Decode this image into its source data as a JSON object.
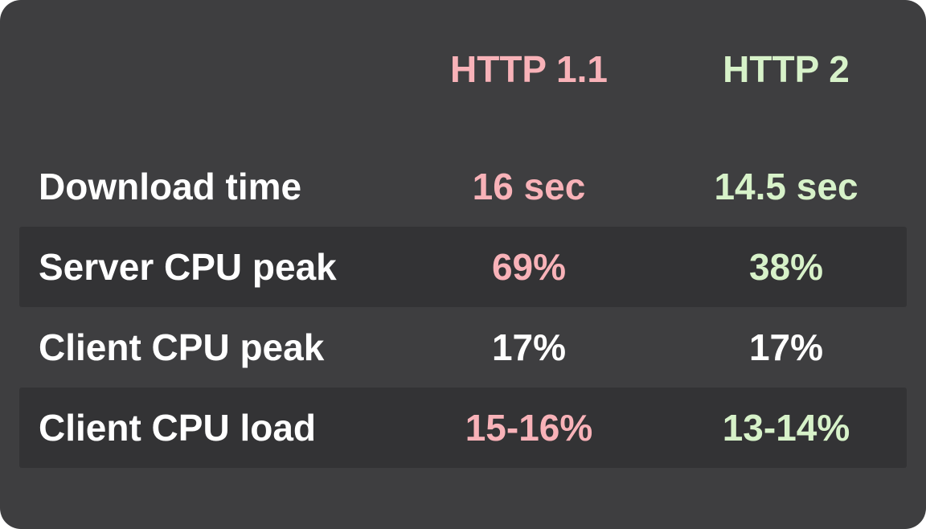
{
  "card": {
    "header": {
      "col1": {
        "label": "HTTP 1.1"
      },
      "col2": {
        "label": "HTTP 2"
      }
    },
    "rows": [
      {
        "label": "Download time",
        "http1_1": "16 sec",
        "http2": "14.5 sec",
        "striped": false
      },
      {
        "label": "Server CPU peak",
        "http1_1": "69%",
        "http2": "38%",
        "striped": true
      },
      {
        "label": "Client CPU peak",
        "http1_1": "17%",
        "http2": "17%",
        "striped": false
      },
      {
        "label": "Client CPU load",
        "http1_1": "15-16%",
        "http2": "13-14%",
        "striped": true
      }
    ]
  },
  "colors": {
    "page_background": "#ffffff",
    "card_background": "#3e3e40",
    "striped_row_background": "#333335",
    "http1_1_accent": "#f8b2b8",
    "http2_accent": "#d7f2c9",
    "label_text": "#ffffff",
    "neutral_value_text": "#ffffff"
  },
  "chart_data": {
    "type": "table",
    "title": "",
    "columns": [
      "",
      "HTTP 1.1",
      "HTTP 2"
    ],
    "rows": [
      [
        "Download time",
        "16 sec",
        "14.5 sec"
      ],
      [
        "Server CPU peak",
        "69%",
        "38%"
      ],
      [
        "Client CPU peak",
        "17%",
        "17%"
      ],
      [
        "Client CPU load",
        "15-16%",
        "13-14%"
      ]
    ],
    "values": {
      "download_time_sec": {
        "http1_1": 16,
        "http2": 14.5
      },
      "server_cpu_peak_percent": {
        "http1_1": 69,
        "http2": 38
      },
      "client_cpu_peak_percent": {
        "http1_1": 17,
        "http2": 17
      },
      "client_cpu_load_percent_range": {
        "http1_1": "15-16",
        "http2": "13-14"
      }
    },
    "legend_position": "top",
    "grid": false
  }
}
